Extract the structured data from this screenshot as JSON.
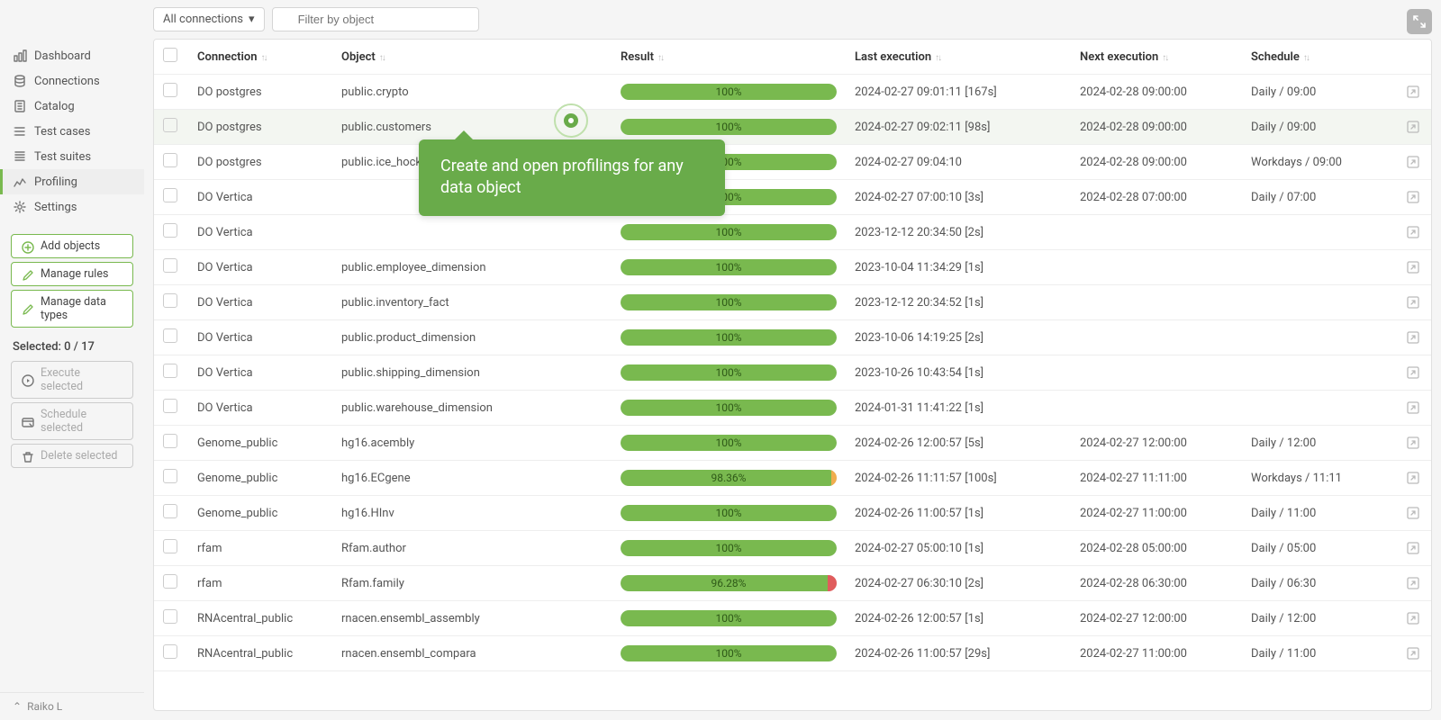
{
  "sidebar": {
    "nav": [
      {
        "label": "Dashboard",
        "icon": "dashboard"
      },
      {
        "label": "Connections",
        "icon": "connections"
      },
      {
        "label": "Catalog",
        "icon": "catalog"
      },
      {
        "label": "Test cases",
        "icon": "testcases"
      },
      {
        "label": "Test suites",
        "icon": "testsuites"
      },
      {
        "label": "Profiling",
        "icon": "profiling",
        "active": true
      },
      {
        "label": "Settings",
        "icon": "settings"
      }
    ],
    "actions": [
      {
        "label": "Add objects",
        "icon": "plus",
        "enabled": true
      },
      {
        "label": "Manage rules",
        "icon": "pencil",
        "enabled": true
      },
      {
        "label": "Manage data types",
        "icon": "pencil",
        "enabled": true
      }
    ],
    "selected_label": "Selected: 0 / 17",
    "bulk": [
      {
        "label": "Execute selected",
        "icon": "play",
        "enabled": false
      },
      {
        "label": "Schedule selected",
        "icon": "schedule",
        "enabled": false
      },
      {
        "label": "Delete selected",
        "icon": "trash",
        "enabled": false
      }
    ],
    "user": "Raiko L"
  },
  "toolbar": {
    "conn_label": "All connections",
    "filter_placeholder": "Filter by object"
  },
  "columns": [
    "Connection",
    "Object",
    "Result",
    "Last execution",
    "Next execution",
    "Schedule"
  ],
  "tooltip": "Create and open profilings for any data object",
  "rows": [
    {
      "conn": "DO postgres",
      "obj": "public.crypto",
      "result": 100,
      "last": "2024-02-27 09:01:11 [167s]",
      "next": "2024-02-28 09:00:00",
      "sched": "Daily / 09:00"
    },
    {
      "conn": "DO postgres",
      "obj": "public.customers",
      "result": 100,
      "last": "2024-02-27 09:02:11 [98s]",
      "next": "2024-02-28 09:00:00",
      "sched": "Daily / 09:00",
      "highlight": true
    },
    {
      "conn": "DO postgres",
      "obj": "public.ice_hockey_action_participants",
      "result": 100,
      "last": "2024-02-27 09:04:10",
      "next": "2024-02-28 09:00:00",
      "sched": "Workdays / 09:00"
    },
    {
      "conn": "DO Vertica",
      "obj": "",
      "result": 100,
      "last": "2024-02-27 07:00:10 [3s]",
      "next": "2024-02-28 07:00:00",
      "sched": "Daily / 07:00"
    },
    {
      "conn": "DO Vertica",
      "obj": "",
      "result": 100,
      "last": "2023-12-12 20:34:50 [2s]",
      "next": "",
      "sched": ""
    },
    {
      "conn": "DO Vertica",
      "obj": "public.employee_dimension",
      "result": 100,
      "last": "2023-10-04 11:34:29 [1s]",
      "next": "",
      "sched": ""
    },
    {
      "conn": "DO Vertica",
      "obj": "public.inventory_fact",
      "result": 100,
      "last": "2023-12-12 20:34:52 [1s]",
      "next": "",
      "sched": ""
    },
    {
      "conn": "DO Vertica",
      "obj": "public.product_dimension",
      "result": 100,
      "last": "2023-10-06 14:19:25 [2s]",
      "next": "",
      "sched": ""
    },
    {
      "conn": "DO Vertica",
      "obj": "public.shipping_dimension",
      "result": 100,
      "last": "2023-10-26 10:43:54 [1s]",
      "next": "",
      "sched": ""
    },
    {
      "conn": "DO Vertica",
      "obj": "public.warehouse_dimension",
      "result": 100,
      "last": "2024-01-31 11:41:22 [1s]",
      "next": "",
      "sched": ""
    },
    {
      "conn": "Genome_public",
      "obj": "hg16.acembly",
      "result": 100,
      "last": "2024-02-26 12:00:57 [5s]",
      "next": "2024-02-27 12:00:00",
      "sched": "Daily / 12:00"
    },
    {
      "conn": "Genome_public",
      "obj": "hg16.ECgene",
      "result": 98.36,
      "warn": true,
      "last": "2024-02-26 11:11:57 [100s]",
      "next": "2024-02-27 11:11:00",
      "sched": "Workdays / 11:11"
    },
    {
      "conn": "Genome_public",
      "obj": "hg16.HInv",
      "result": 100,
      "last": "2024-02-26 11:00:57 [1s]",
      "next": "2024-02-27 11:00:00",
      "sched": "Daily / 11:00"
    },
    {
      "conn": "rfam",
      "obj": "Rfam.author",
      "result": 100,
      "last": "2024-02-27 05:00:10 [1s]",
      "next": "2024-02-28 05:00:00",
      "sched": "Daily / 05:00"
    },
    {
      "conn": "rfam",
      "obj": "Rfam.family",
      "result": 96.28,
      "err": true,
      "last": "2024-02-27 06:30:10 [2s]",
      "next": "2024-02-28 06:30:00",
      "sched": "Daily / 06:30"
    },
    {
      "conn": "RNAcentral_public",
      "obj": "rnacen.ensembl_assembly",
      "result": 100,
      "last": "2024-02-26 12:00:57 [1s]",
      "next": "2024-02-27 12:00:00",
      "sched": "Daily / 12:00"
    },
    {
      "conn": "RNAcentral_public",
      "obj": "rnacen.ensembl_compara",
      "result": 100,
      "last": "2024-02-26 11:00:57 [29s]",
      "next": "2024-02-27 11:00:00",
      "sched": "Daily / 11:00"
    }
  ],
  "colors": {
    "accent": "#79b94f",
    "bar_bg": "#e0e0e0",
    "bar_warn": "#f0ad4e",
    "bar_err": "#e05c5c"
  }
}
